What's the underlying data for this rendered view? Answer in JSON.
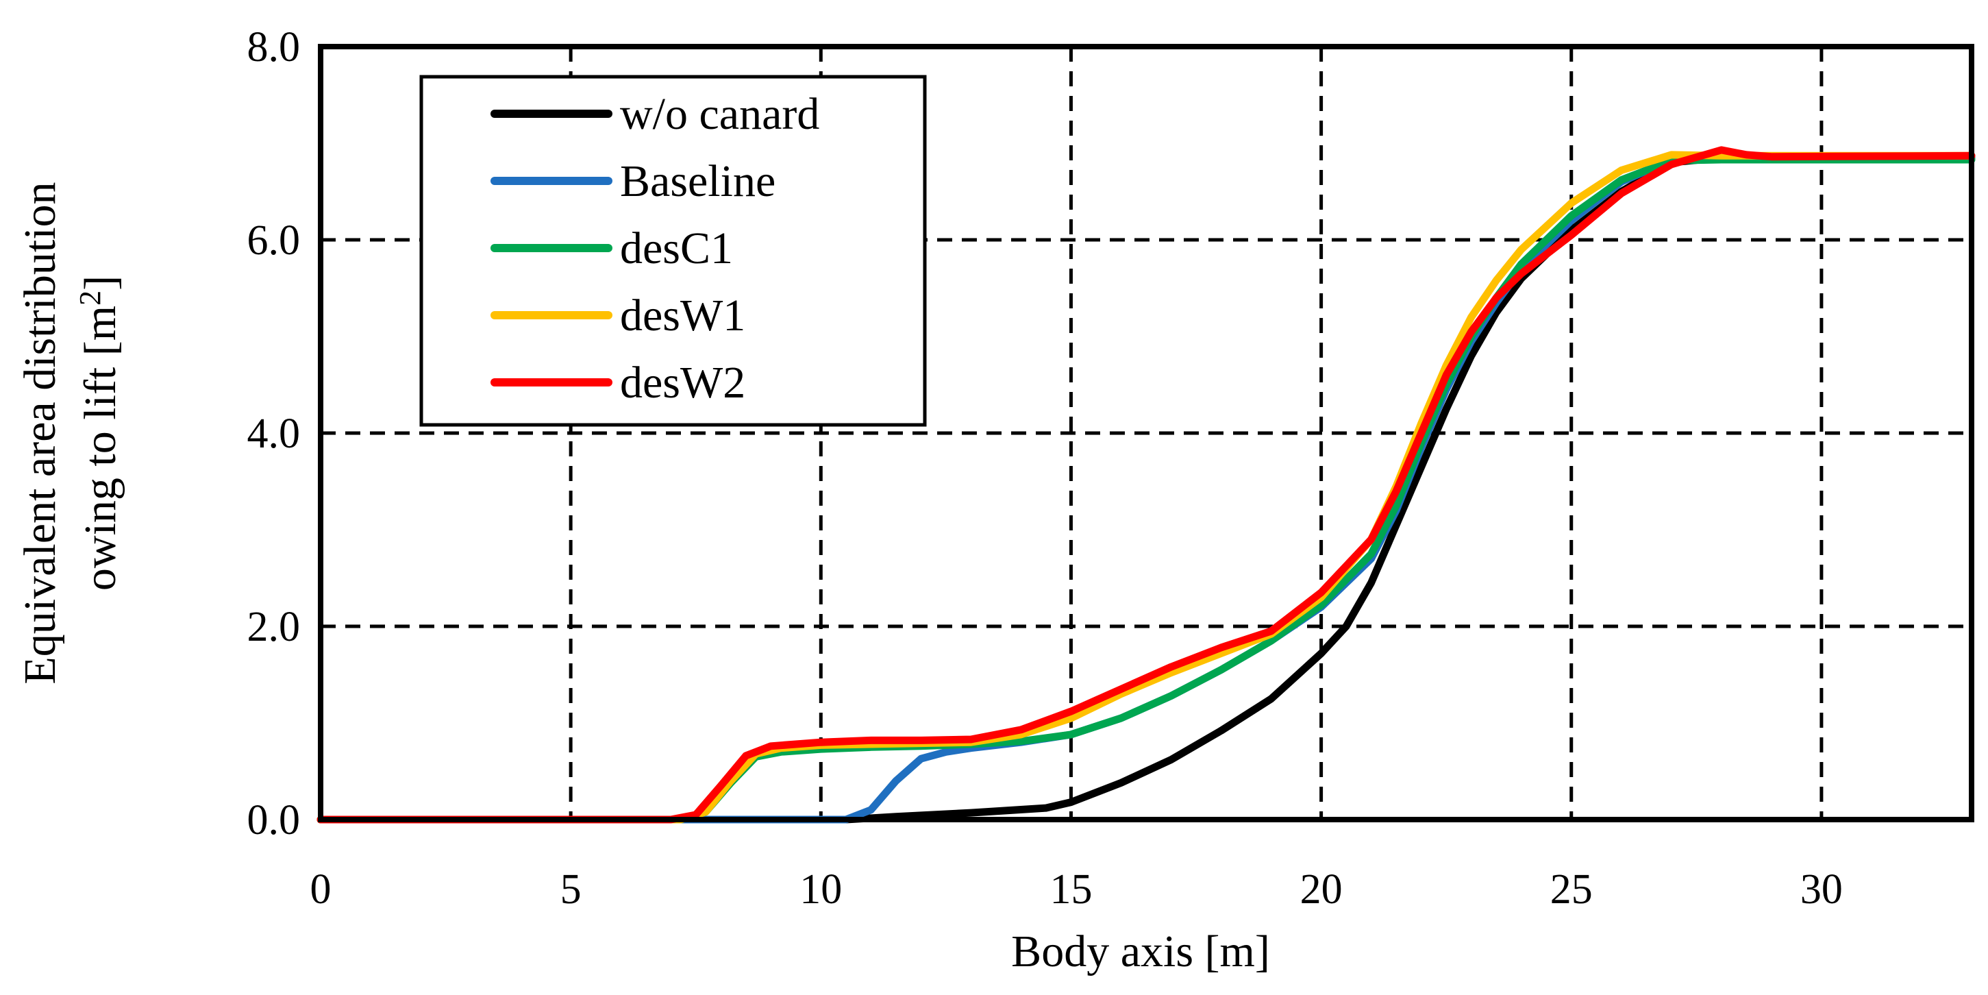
{
  "chart_data": {
    "type": "line",
    "xlabel": "Body axis [m]",
    "ylabel_line1": "Equivalent area distribution",
    "ylabel_line2": "owing to lift [m",
    "ylabel_sup": "2",
    "ylabel_close": "]",
    "xlim": [
      0,
      33
    ],
    "ylim": [
      0,
      8
    ],
    "x_ticks": [
      0,
      5,
      10,
      15,
      20,
      25,
      30
    ],
    "y_ticks": [
      0,
      2,
      4,
      6,
      8
    ],
    "x_tick_labels": [
      "0",
      "5",
      "10",
      "15",
      "20",
      "25",
      "30"
    ],
    "y_tick_labels": [
      "0.0",
      "2.0",
      "4.0",
      "6.0",
      "8.0"
    ],
    "grid": true,
    "legend_position": "top-left",
    "series": [
      {
        "name": "w/o canard",
        "color": "#000000",
        "points": [
          [
            0,
            0
          ],
          [
            10.5,
            0
          ],
          [
            11.5,
            0.03
          ],
          [
            13,
            0.07
          ],
          [
            14.5,
            0.12
          ],
          [
            15,
            0.18
          ],
          [
            16,
            0.38
          ],
          [
            17,
            0.62
          ],
          [
            18,
            0.92
          ],
          [
            19,
            1.25
          ],
          [
            20,
            1.72
          ],
          [
            20.5,
            2.0
          ],
          [
            21,
            2.45
          ],
          [
            21.5,
            3.05
          ],
          [
            22,
            3.65
          ],
          [
            22.5,
            4.25
          ],
          [
            23,
            4.8
          ],
          [
            23.5,
            5.25
          ],
          [
            24,
            5.6
          ],
          [
            25,
            6.1
          ],
          [
            26,
            6.5
          ],
          [
            27,
            6.8
          ],
          [
            28,
            6.85
          ],
          [
            33,
            6.85
          ]
        ]
      },
      {
        "name": "Baseline",
        "color": "#1F6FC0",
        "points": [
          [
            0,
            0
          ],
          [
            10.5,
            0
          ],
          [
            11,
            0.1
          ],
          [
            11.5,
            0.4
          ],
          [
            12,
            0.63
          ],
          [
            12.5,
            0.7
          ],
          [
            13,
            0.74
          ],
          [
            14,
            0.8
          ],
          [
            15,
            0.88
          ],
          [
            16,
            1.05
          ],
          [
            17,
            1.28
          ],
          [
            18,
            1.55
          ],
          [
            19,
            1.85
          ],
          [
            20,
            2.2
          ],
          [
            21,
            2.7
          ],
          [
            21.5,
            3.2
          ],
          [
            22,
            3.85
          ],
          [
            22.5,
            4.45
          ],
          [
            23,
            4.95
          ],
          [
            23.5,
            5.35
          ],
          [
            24,
            5.7
          ],
          [
            25,
            6.2
          ],
          [
            26,
            6.6
          ],
          [
            27,
            6.83
          ],
          [
            28,
            6.85
          ],
          [
            33,
            6.85
          ]
        ]
      },
      {
        "name": "desC1",
        "color": "#00A650",
        "points": [
          [
            0,
            0
          ],
          [
            7.2,
            0
          ],
          [
            7.7,
            0.08
          ],
          [
            8.2,
            0.38
          ],
          [
            8.7,
            0.65
          ],
          [
            9.2,
            0.7
          ],
          [
            10,
            0.73
          ],
          [
            11,
            0.75
          ],
          [
            12,
            0.76
          ],
          [
            13,
            0.78
          ],
          [
            14,
            0.81
          ],
          [
            15,
            0.88
          ],
          [
            16,
            1.05
          ],
          [
            17,
            1.28
          ],
          [
            18,
            1.55
          ],
          [
            19,
            1.85
          ],
          [
            20,
            2.22
          ],
          [
            21,
            2.75
          ],
          [
            21.5,
            3.25
          ],
          [
            22,
            3.9
          ],
          [
            22.5,
            4.5
          ],
          [
            23,
            5.0
          ],
          [
            23.5,
            5.4
          ],
          [
            24,
            5.75
          ],
          [
            25,
            6.25
          ],
          [
            26,
            6.62
          ],
          [
            27,
            6.82
          ],
          [
            28,
            6.83
          ],
          [
            33,
            6.83
          ]
        ]
      },
      {
        "name": "desW1",
        "color": "#FFC000",
        "points": [
          [
            0,
            0
          ],
          [
            7.2,
            0
          ],
          [
            7.7,
            0.08
          ],
          [
            8.2,
            0.4
          ],
          [
            8.7,
            0.68
          ],
          [
            9.2,
            0.74
          ],
          [
            10,
            0.77
          ],
          [
            11,
            0.78
          ],
          [
            12,
            0.79
          ],
          [
            13,
            0.8
          ],
          [
            14,
            0.88
          ],
          [
            15,
            1.05
          ],
          [
            16,
            1.3
          ],
          [
            17,
            1.52
          ],
          [
            18,
            1.72
          ],
          [
            19,
            1.92
          ],
          [
            20,
            2.3
          ],
          [
            21,
            2.9
          ],
          [
            21.5,
            3.45
          ],
          [
            22,
            4.1
          ],
          [
            22.5,
            4.7
          ],
          [
            23,
            5.2
          ],
          [
            23.5,
            5.58
          ],
          [
            24,
            5.9
          ],
          [
            25,
            6.38
          ],
          [
            26,
            6.72
          ],
          [
            27,
            6.88
          ],
          [
            28,
            6.87
          ],
          [
            33,
            6.87
          ]
        ]
      },
      {
        "name": "desW2",
        "color": "#FF0000",
        "points": [
          [
            0,
            0
          ],
          [
            7,
            0
          ],
          [
            7.5,
            0.05
          ],
          [
            8,
            0.35
          ],
          [
            8.5,
            0.66
          ],
          [
            9,
            0.76
          ],
          [
            10,
            0.8
          ],
          [
            11,
            0.82
          ],
          [
            12,
            0.82
          ],
          [
            13,
            0.83
          ],
          [
            14,
            0.93
          ],
          [
            15,
            1.12
          ],
          [
            16,
            1.35
          ],
          [
            17,
            1.58
          ],
          [
            18,
            1.78
          ],
          [
            19,
            1.95
          ],
          [
            20,
            2.35
          ],
          [
            21,
            2.9
          ],
          [
            21.5,
            3.4
          ],
          [
            22,
            4.0
          ],
          [
            22.5,
            4.6
          ],
          [
            23,
            5.05
          ],
          [
            23.5,
            5.4
          ],
          [
            24,
            5.65
          ],
          [
            25,
            6.05
          ],
          [
            26,
            6.48
          ],
          [
            27,
            6.78
          ],
          [
            28,
            6.93
          ],
          [
            28.5,
            6.88
          ],
          [
            29,
            6.86
          ],
          [
            33,
            6.87
          ]
        ]
      }
    ]
  }
}
